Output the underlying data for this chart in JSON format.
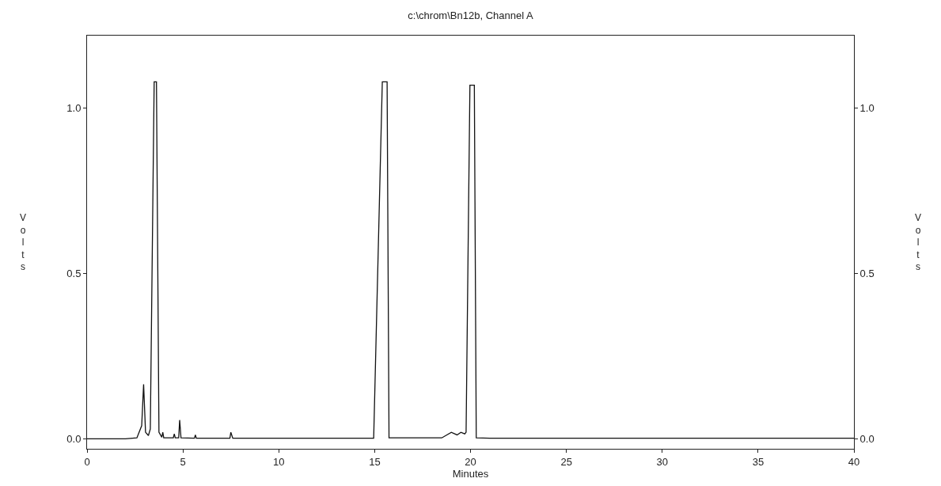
{
  "chart_data": {
    "type": "line",
    "title": "c:\\chrom\\Bn12b, Channel A",
    "xlabel": "Minutes",
    "ylabel": "Volts",
    "y2label": "Volts",
    "x": [
      0,
      1,
      2,
      2.6,
      2.85,
      2.95,
      3.05,
      3.2,
      3.3,
      3.5,
      3.62,
      3.75,
      3.9,
      3.95,
      4.0,
      4.5,
      4.55,
      4.6,
      4.78,
      4.83,
      4.9,
      5.6,
      5.65,
      5.7,
      7.45,
      7.5,
      7.6,
      10,
      12.5,
      14.9,
      14.95,
      15.4,
      15.65,
      15.75,
      16,
      18.5,
      19.0,
      19.3,
      19.5,
      19.7,
      19.77,
      19.97,
      20.2,
      20.3,
      21,
      25,
      30,
      35,
      40
    ],
    "series": [
      {
        "color": "#111111",
        "values": [
          0,
          0,
          0,
          0.003,
          0.04,
          0.165,
          0.02,
          0.01,
          0.03,
          1.08,
          1.08,
          0.02,
          0.005,
          0.02,
          0.003,
          0.003,
          0.015,
          0.003,
          0.003,
          0.057,
          0.003,
          0.002,
          0.012,
          0.002,
          0.002,
          0.02,
          0.002,
          0.002,
          0.002,
          0.002,
          0.002,
          1.08,
          1.08,
          0.003,
          0.003,
          0.003,
          0.02,
          0.012,
          0.02,
          0.015,
          0.02,
          1.07,
          1.07,
          0.003,
          0.002,
          0.002,
          0.002,
          0.002,
          0.002
        ]
      }
    ],
    "xlim": [
      0,
      40
    ],
    "xticks": [
      0,
      5,
      10,
      15,
      20,
      25,
      30,
      35,
      40
    ],
    "ylim": [
      -0.03,
      1.22
    ],
    "yticks": [
      {
        "value": 0,
        "label": "0.0"
      },
      0.5,
      {
        "value": 1,
        "label": "1.0"
      }
    ],
    "y2lim": [
      -0.03,
      1.22
    ],
    "y2ticks": [
      {
        "value": 0,
        "label": "0.0"
      },
      0.5,
      {
        "value": 1,
        "label": "1.0"
      }
    ],
    "marker": "none",
    "line_style": "solid"
  }
}
